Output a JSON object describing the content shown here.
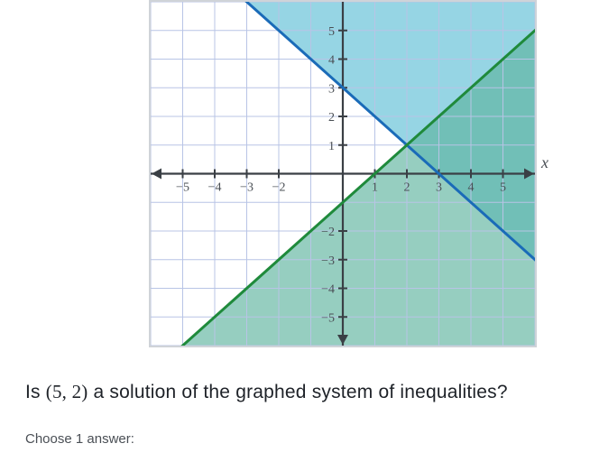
{
  "graph": {
    "type": "inequality-system",
    "xlim": [
      -6,
      6
    ],
    "ylim": [
      -6,
      6
    ],
    "xtick_labels": [
      -5,
      -4,
      -3,
      -2,
      1,
      2,
      3,
      4,
      5
    ],
    "ytick_labels": [
      -5,
      -4,
      -3,
      -2,
      1,
      2,
      3,
      4,
      5
    ],
    "grid_color": "#b8c4e6",
    "axis_color": "#3a3f45",
    "background_color": "#ffffff",
    "tick_fontsize": 14,
    "tick_color": "#4a4f55",
    "lines": [
      {
        "name": "blue-line",
        "slope": -1,
        "intercept": 3,
        "color": "#1a6bb8",
        "width": 3,
        "shade": "above",
        "shade_color": "#69c3d9",
        "shade_opacity": 0.7
      },
      {
        "name": "green-line",
        "slope": 1,
        "intercept": -1,
        "color": "#1f8a3b",
        "width": 3,
        "shade": "below",
        "shade_color": "#5eb39e",
        "shade_opacity": 0.65
      }
    ],
    "axis_label_x": "x"
  },
  "question": {
    "prefix": "Is ",
    "coord": "(5, 2)",
    "suffix": " a solution of the graphed system of inequalities?"
  },
  "prompt": "Choose 1 answer:"
}
